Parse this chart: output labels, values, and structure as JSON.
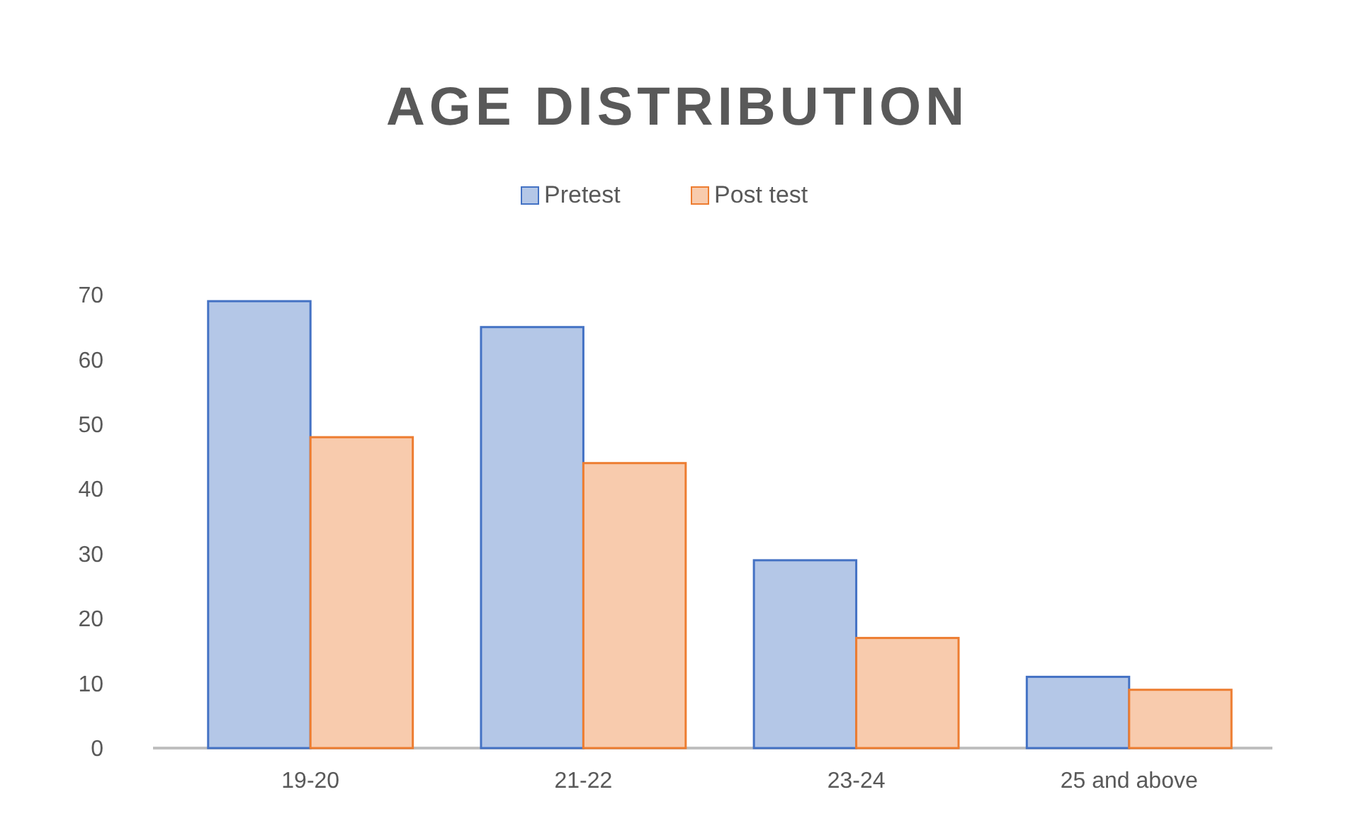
{
  "chart_data": {
    "type": "bar",
    "title": "AGE DISTRIBUTION",
    "categories": [
      "19-20",
      "21-22",
      "23-24",
      "25 and above"
    ],
    "series": [
      {
        "name": "Pretest",
        "color": "#b4c7e7",
        "values": [
          69,
          65,
          29,
          11
        ]
      },
      {
        "name": "Post test",
        "color": "#f8cbad",
        "values": [
          48,
          44,
          17,
          9
        ]
      }
    ],
    "ylim": [
      0,
      70
    ],
    "yticks": [
      0,
      10,
      20,
      30,
      40,
      50,
      60,
      70
    ],
    "grid": false,
    "legend": "top"
  }
}
